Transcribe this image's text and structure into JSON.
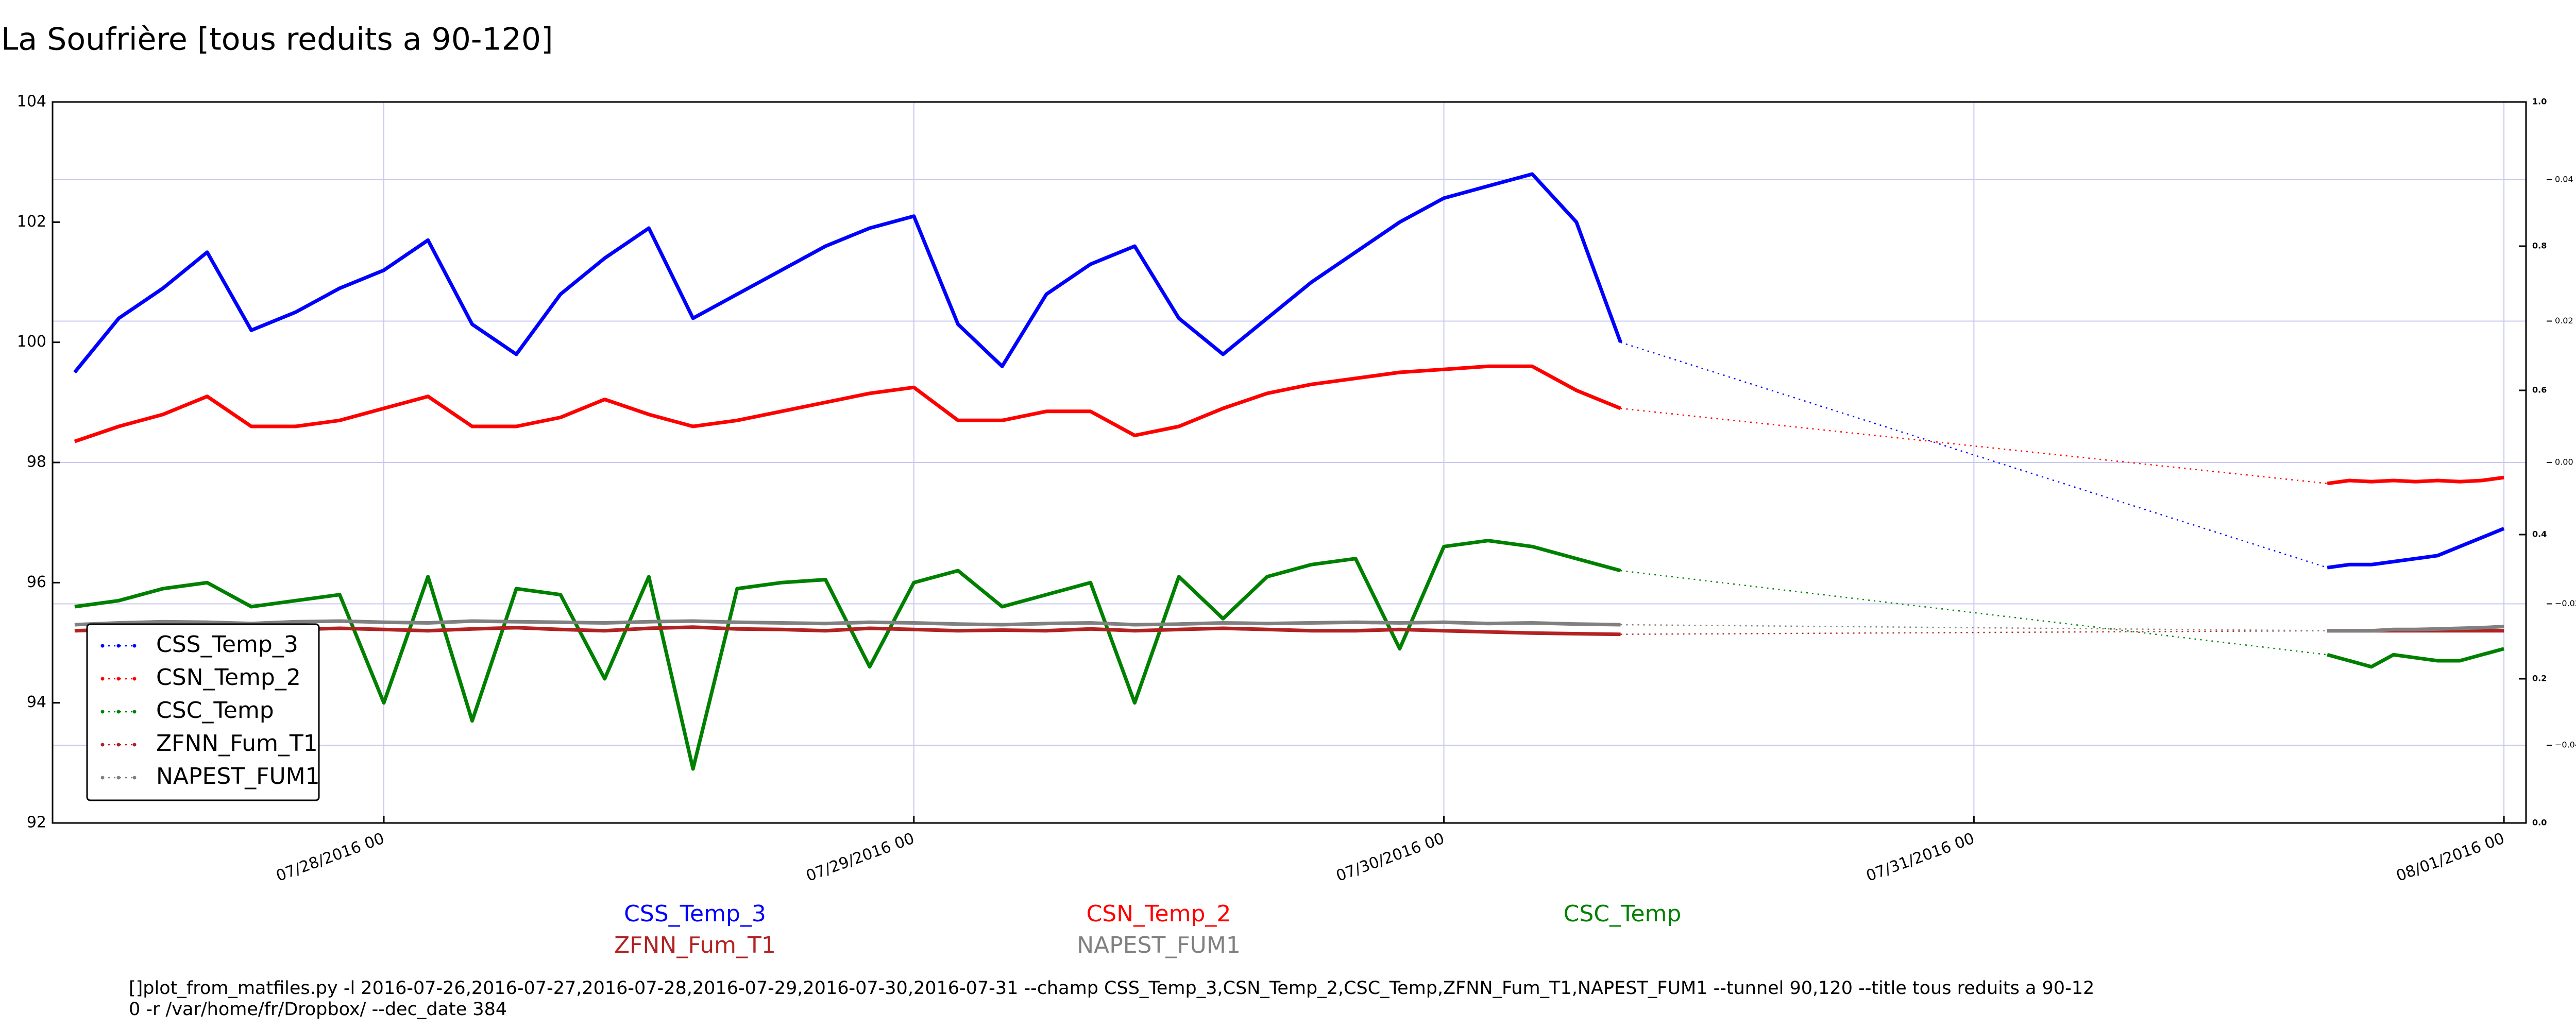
{
  "chart_data": {
    "type": "line",
    "title": "La Soufrière [tous reduits a 90-120]",
    "x": [
      "07/27/2016 10",
      "07/27/2016 12",
      "07/27/2016 14",
      "07/27/2016 16",
      "07/27/2016 18",
      "07/27/2016 20",
      "07/27/2016 22",
      "07/28/2016 00",
      "07/28/2016 02",
      "07/28/2016 04",
      "07/28/2016 06",
      "07/28/2016 08",
      "07/28/2016 10",
      "07/28/2016 12",
      "07/28/2016 14",
      "07/28/2016 16",
      "07/28/2016 18",
      "07/28/2016 20",
      "07/28/2016 22",
      "07/29/2016 00",
      "07/29/2016 02",
      "07/29/2016 04",
      "07/29/2016 06",
      "07/29/2016 08",
      "07/29/2016 10",
      "07/29/2016 12",
      "07/29/2016 14",
      "07/29/2016 16",
      "07/29/2016 18",
      "07/29/2016 20",
      "07/29/2016 22",
      "07/30/2016 00",
      "07/30/2016 02",
      "07/30/2016 04",
      "07/30/2016 06",
      "07/30/2016 08",
      "07/31/2016 16",
      "07/31/2016 17",
      "07/31/2016 18",
      "07/31/2016 19",
      "07/31/2016 20",
      "07/31/2016 21",
      "07/31/2016 22",
      "07/31/2016 23",
      "08/01/2016 00"
    ],
    "series": [
      {
        "name": "CSS_Temp_3",
        "color": "#0000ff",
        "values": [
          99.5,
          100.4,
          100.9,
          101.5,
          100.2,
          100.5,
          100.9,
          101.2,
          101.7,
          100.3,
          99.8,
          100.8,
          101.4,
          101.9,
          100.4,
          100.8,
          101.2,
          101.6,
          101.9,
          102.1,
          100.3,
          99.6,
          100.8,
          101.3,
          101.6,
          100.4,
          99.8,
          100.4,
          101.0,
          101.5,
          102.0,
          102.4,
          102.6,
          102.8,
          102.0,
          100.0,
          96.25,
          96.3,
          96.3,
          96.35,
          96.4,
          96.45,
          96.6,
          96.75,
          96.9
        ]
      },
      {
        "name": "CSN_Temp_2",
        "color": "#ff0000",
        "values": [
          98.35,
          98.6,
          98.8,
          99.1,
          98.6,
          98.6,
          98.7,
          98.9,
          99.1,
          98.6,
          98.6,
          98.75,
          99.05,
          98.8,
          98.6,
          98.7,
          98.85,
          99.0,
          99.15,
          99.25,
          98.7,
          98.7,
          98.85,
          98.85,
          98.45,
          98.6,
          98.9,
          99.15,
          99.3,
          99.4,
          99.5,
          99.55,
          99.6,
          99.6,
          99.2,
          98.9,
          97.65,
          97.7,
          97.68,
          97.7,
          97.68,
          97.7,
          97.68,
          97.7,
          97.75
        ]
      },
      {
        "name": "CSC_Temp",
        "color": "#008000",
        "values": [
          95.6,
          95.7,
          95.9,
          96.0,
          95.6,
          95.7,
          95.8,
          94.0,
          96.1,
          93.7,
          95.9,
          95.8,
          94.4,
          96.1,
          92.9,
          95.9,
          96.0,
          96.05,
          94.6,
          96.0,
          96.2,
          95.6,
          95.8,
          96.0,
          94.0,
          96.1,
          95.4,
          96.1,
          96.3,
          96.4,
          94.9,
          96.6,
          96.7,
          96.6,
          96.4,
          96.2,
          94.8,
          94.7,
          94.6,
          94.8,
          94.75,
          94.7,
          94.7,
          94.8,
          94.9
        ]
      },
      {
        "name": "ZFNN_Fum_T1",
        "color": "#b22222",
        "values": [
          95.2,
          95.22,
          95.25,
          95.23,
          95.2,
          95.22,
          95.24,
          95.22,
          95.2,
          95.23,
          95.25,
          95.22,
          95.2,
          95.24,
          95.26,
          95.23,
          95.22,
          95.2,
          95.24,
          95.22,
          95.2,
          95.21,
          95.2,
          95.23,
          95.2,
          95.22,
          95.24,
          95.22,
          95.2,
          95.2,
          95.22,
          95.2,
          95.18,
          95.16,
          95.15,
          95.14,
          95.2,
          95.2,
          95.2,
          95.2,
          95.2,
          95.2,
          95.2,
          95.2,
          95.2
        ]
      },
      {
        "name": "NAPEST_FUM1",
        "color": "#808080",
        "values": [
          95.3,
          95.33,
          95.35,
          95.34,
          95.32,
          95.35,
          95.36,
          95.34,
          95.33,
          95.36,
          95.35,
          95.34,
          95.33,
          95.35,
          95.36,
          95.34,
          95.33,
          95.32,
          95.34,
          95.33,
          95.31,
          95.3,
          95.32,
          95.33,
          95.3,
          95.31,
          95.33,
          95.32,
          95.33,
          95.34,
          95.33,
          95.34,
          95.32,
          95.33,
          95.31,
          95.3,
          95.2,
          95.2,
          95.2,
          95.22,
          95.22,
          95.23,
          95.24,
          95.25,
          95.27
        ]
      }
    ],
    "xlim": [
      "07/27/2016 09",
      "08/01/2016 01"
    ],
    "xticks": [
      "07/28/2016 00",
      "07/29/2016 00",
      "07/30/2016 00",
      "07/31/2016 00",
      "08/01/2016 00"
    ],
    "ylim": [
      92,
      104
    ],
    "yticks": [
      92,
      94,
      96,
      98,
      100,
      102,
      104
    ],
    "y2lim": [
      0,
      1
    ],
    "y2ticks": [
      {
        "value": 0,
        "label": "0.0"
      },
      {
        "value": 0.2,
        "label": "0.2"
      },
      {
        "value": 0.4,
        "label": "0.4"
      },
      {
        "value": 0.6,
        "label": "0.6"
      },
      {
        "value": 0.8,
        "label": "0.8"
      },
      {
        "value": 1,
        "label": "1.0"
      }
    ],
    "y3lim": [
      -0.051,
      0.051
    ],
    "y3ticks": [
      {
        "value": -0.04,
        "label": "−0.04"
      },
      {
        "value": -0.02,
        "label": "−0.02"
      },
      {
        "value": 0,
        "label": "0.00"
      },
      0.02,
      0.04
    ],
    "grid": true,
    "legend": "lower left",
    "command_lines": [
      "[]plot_from_matfiles.py -l 2016-07-26,2016-07-27,2016-07-28,2016-07-29,2016-07-30,2016-07-31 --champ CSS_Temp_3,CSN_Temp_2,CSC_Temp,ZFNN_Fum_T1,NAPEST_FUM1 --tunnel 90,120 --title tous reduits a 90-12",
      "0 -r /var/home/fr/Dropbox/ --dec_date 384"
    ]
  }
}
